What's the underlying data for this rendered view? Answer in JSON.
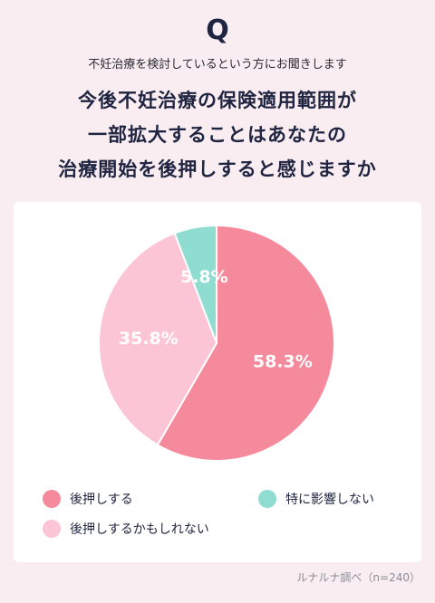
{
  "header": {
    "q_mark": "Q",
    "intro": "不妊治療を検討しているという方にお聞きします",
    "question_lines": [
      "今後不妊治療の保険適用範囲が",
      "一部拡大することはあなたの",
      "治療開始を後押しすると感じますか"
    ]
  },
  "chart_data": {
    "type": "pie",
    "slices": [
      {
        "label": "後押しする",
        "value": 58.3,
        "display": "58.3%",
        "color": "#f48a9c"
      },
      {
        "label": "後押しするかもしれない",
        "value": 35.8,
        "display": "35.8%",
        "color": "#fbc5d6"
      },
      {
        "label": "特に影響しない",
        "value": 5.8,
        "display": "5.8%",
        "color": "#8fdcd0"
      }
    ],
    "legend_placement": "bottom"
  },
  "source": "ルナルナ調べ（n=240）"
}
